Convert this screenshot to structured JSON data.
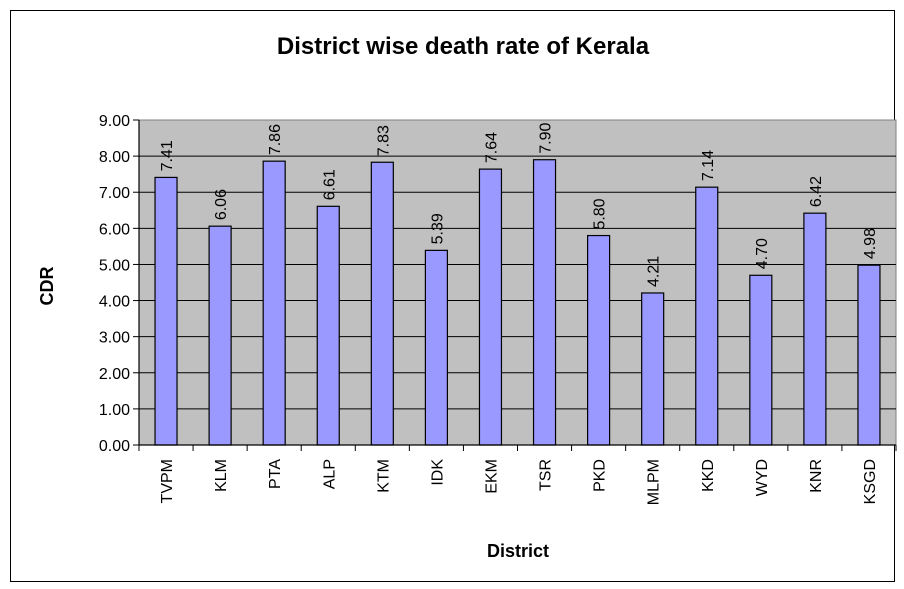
{
  "chart_data": {
    "type": "bar",
    "title": "District wise death rate of Kerala",
    "xlabel": "District",
    "ylabel": "CDR",
    "categories": [
      "TVPM",
      "KLM",
      "PTA",
      "ALP",
      "KTM",
      "IDK",
      "EKM",
      "TSR",
      "PKD",
      "MLPM",
      "KKD",
      "WYD",
      "KNR",
      "KSGD"
    ],
    "values": [
      7.41,
      6.06,
      7.86,
      6.61,
      7.83,
      5.39,
      7.64,
      7.9,
      5.8,
      4.21,
      7.14,
      4.7,
      6.42,
      4.98
    ],
    "data_labels": [
      "7.41",
      "6.06",
      "7.86",
      "6.61",
      "7.83",
      "5.39",
      "7.64",
      "7.90",
      "5.80",
      "4.21",
      "7.14",
      "4.70",
      "6.42",
      "4.98"
    ],
    "ylim": [
      0,
      9
    ],
    "yticks": [
      "0.00",
      "1.00",
      "2.00",
      "3.00",
      "4.00",
      "5.00",
      "6.00",
      "7.00",
      "8.00",
      "9.00"
    ],
    "grid": "horizontal",
    "legend": "none",
    "colors": {
      "bar_fill": "#9999ff",
      "bar_stroke": "#000000",
      "plot_background": "#c0c0c0"
    }
  }
}
